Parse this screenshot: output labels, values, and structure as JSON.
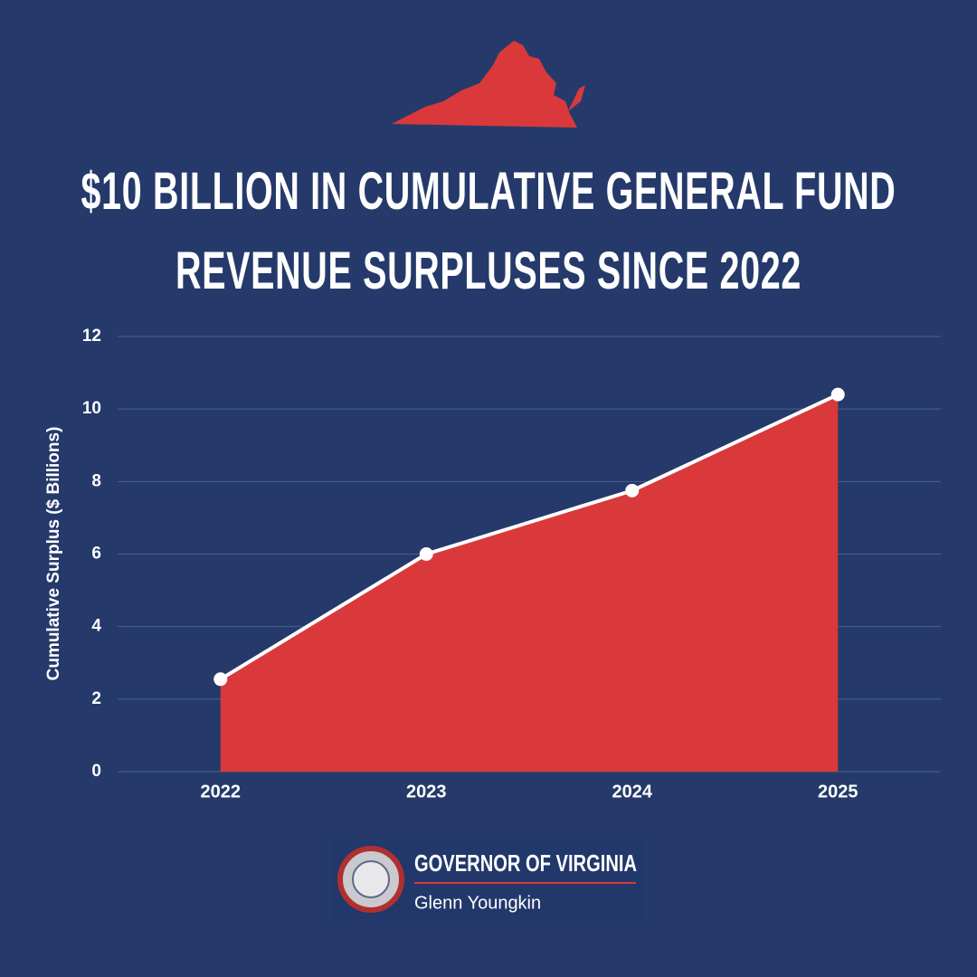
{
  "chart_data": {
    "type": "area",
    "title": "$10 BILLION IN CUMULATIVE GENERAL FUND REVENUE SURPLUSES SINCE 2022",
    "ylabel": "Cumulative Surplus ($ Billions)",
    "categories": [
      "2022",
      "2023",
      "2024",
      "2025"
    ],
    "values": [
      2.55,
      6.0,
      7.75,
      10.4
    ],
    "color": "#d9393a",
    "line_color": "#ffffff",
    "ylim": [
      0,
      12
    ],
    "yticks": [
      0,
      2,
      4,
      6,
      8,
      10,
      12
    ],
    "grid": true
  },
  "footer": {
    "org": "GOVERNOR OF VIRGINIA",
    "name": "Glenn Youngkin"
  }
}
